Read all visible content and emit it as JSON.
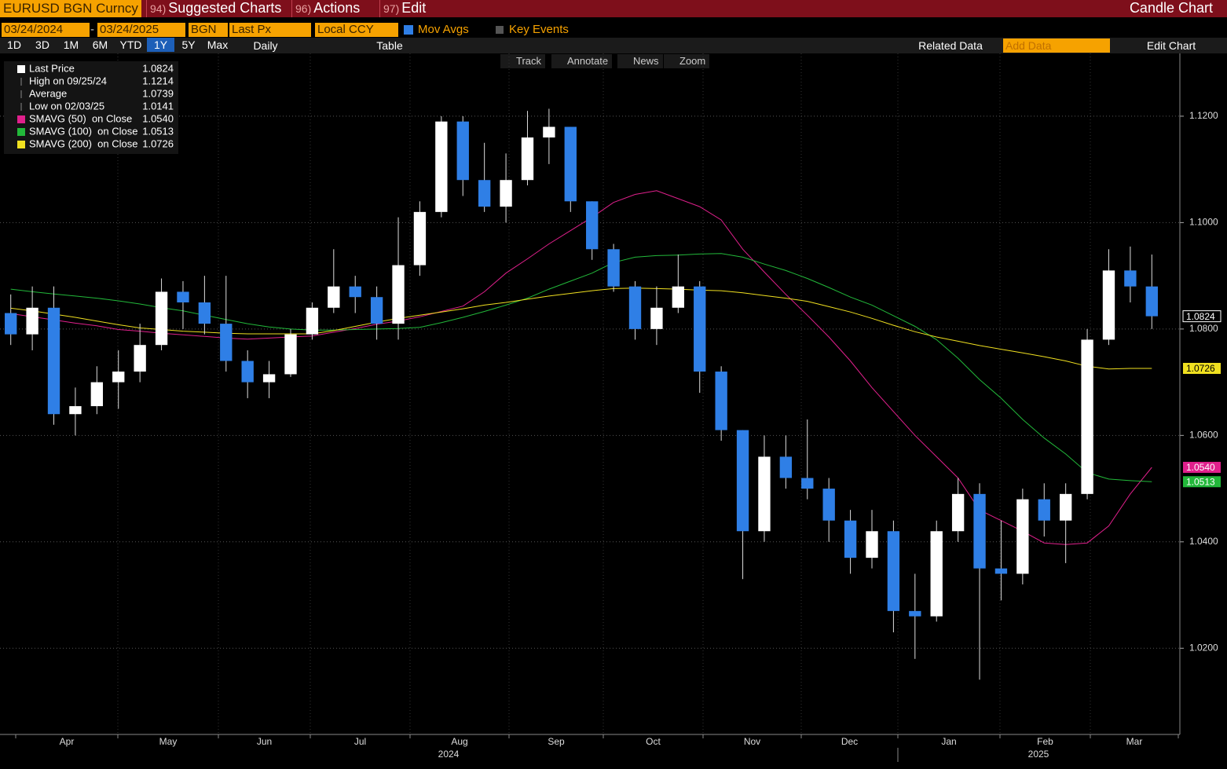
{
  "toolbar": {
    "security": "EURUSD BGN Curncy",
    "menus": [
      {
        "num": "94)",
        "label": "Suggested Charts"
      },
      {
        "num": "96)",
        "label": "Actions"
      },
      {
        "num": "97)",
        "label": "Edit"
      }
    ],
    "chart_kind": "Candle Chart",
    "start_date": "03/24/2024",
    "end_date": "03/24/2025",
    "source": "BGN",
    "field": "Last Px",
    "currency": "Local CCY",
    "mov_avgs": "Mov Avgs",
    "key_events": "Key Events",
    "periods": [
      "1D",
      "3D",
      "1M",
      "6M",
      "YTD",
      "1Y",
      "5Y",
      "Max"
    ],
    "frequency": "Daily",
    "table": "Table",
    "related": "Related Data",
    "add_data": "Add Data",
    "edit_chart": "Edit Chart",
    "tools": [
      "Track",
      "Annotate",
      "News",
      "Zoom"
    ]
  },
  "chart_data": {
    "type": "candlestick",
    "up_color": "#ffffff",
    "down_color": "#2f7fe6",
    "open": [
      1.083,
      1.079,
      1.084,
      1.064,
      1.0655,
      1.07,
      1.072,
      1.077,
      1.087,
      1.085,
      1.081,
      1.074,
      1.07,
      1.0715,
      1.079,
      1.084,
      1.088,
      1.086,
      1.081,
      1.092,
      1.102,
      1.119,
      1.108,
      1.103,
      1.108,
      1.116,
      1.118,
      1.104,
      1.095,
      1.088,
      1.08,
      1.084,
      1.088,
      1.072,
      1.061,
      1.042,
      1.056,
      1.052,
      1.05,
      1.044,
      1.037,
      1.042,
      1.027,
      1.026,
      1.042,
      1.049,
      1.035,
      1.034,
      1.048,
      1.044,
      1.049,
      1.078,
      1.091,
      1.088
    ],
    "high": [
      1.0865,
      1.088,
      1.088,
      1.069,
      1.073,
      1.076,
      1.081,
      1.0895,
      1.089,
      1.09,
      1.09,
      1.076,
      1.074,
      1.08,
      1.085,
      1.095,
      1.09,
      1.088,
      1.101,
      1.104,
      1.12,
      1.12,
      1.115,
      1.113,
      1.121,
      1.1214,
      1.118,
      1.104,
      1.096,
      1.089,
      1.088,
      1.094,
      1.089,
      1.073,
      1.061,
      1.06,
      1.06,
      1.063,
      1.052,
      1.046,
      1.046,
      1.044,
      1.034,
      1.044,
      1.052,
      1.051,
      1.044,
      1.05,
      1.051,
      1.051,
      1.08,
      1.095,
      1.0955,
      1.094
    ],
    "low": [
      1.077,
      1.076,
      1.062,
      1.06,
      1.064,
      1.065,
      1.07,
      1.076,
      1.08,
      1.079,
      1.072,
      1.067,
      1.067,
      1.071,
      1.078,
      1.083,
      1.083,
      1.078,
      1.078,
      1.09,
      1.101,
      1.105,
      1.102,
      1.1,
      1.107,
      1.111,
      1.102,
      1.093,
      1.087,
      1.078,
      1.077,
      1.083,
      1.068,
      1.059,
      1.033,
      1.04,
      1.05,
      1.048,
      1.04,
      1.034,
      1.035,
      1.023,
      1.018,
      1.025,
      1.04,
      1.0141,
      1.029,
      1.032,
      1.041,
      1.036,
      1.048,
      1.077,
      1.085,
      1.08
    ],
    "close": [
      1.079,
      1.084,
      1.064,
      1.0655,
      1.07,
      1.072,
      1.077,
      1.087,
      1.085,
      1.081,
      1.074,
      1.07,
      1.0715,
      1.079,
      1.084,
      1.088,
      1.086,
      1.081,
      1.092,
      1.102,
      1.119,
      1.108,
      1.103,
      1.108,
      1.116,
      1.118,
      1.104,
      1.095,
      1.088,
      1.08,
      1.084,
      1.088,
      1.072,
      1.061,
      1.042,
      1.056,
      1.052,
      1.05,
      1.044,
      1.037,
      1.042,
      1.027,
      1.026,
      1.042,
      1.049,
      1.035,
      1.034,
      1.048,
      1.044,
      1.049,
      1.078,
      1.091,
      1.088,
      1.0824
    ],
    "series": [
      {
        "name": "SMAVG (50)  on Close",
        "color": "#e0208c",
        "last": {
          "value": 1.054,
          "label": "1.0540"
        },
        "values": [
          1.0829,
          1.0823,
          1.0817,
          1.0811,
          1.0806,
          1.0799,
          1.0796,
          1.0792,
          1.0789,
          1.0786,
          1.0783,
          1.0781,
          1.0783,
          1.0785,
          1.0787,
          1.0794,
          1.0801,
          1.0809,
          1.0815,
          1.0823,
          1.0833,
          1.0843,
          1.087,
          1.0905,
          1.0932,
          1.096,
          1.0985,
          1.101,
          1.1038,
          1.1053,
          1.106,
          1.1045,
          1.103,
          1.1005,
          1.095,
          1.0907,
          1.0865,
          1.0826,
          1.0785,
          1.074,
          1.069,
          1.0645,
          1.06,
          1.056,
          1.052,
          1.046,
          1.044,
          1.042,
          1.0398,
          1.0395,
          1.0398,
          1.043,
          1.049,
          1.054
        ]
      },
      {
        "name": "SMAVG (100)  on Close",
        "color": "#22b83a",
        "last": {
          "value": 1.0513,
          "label": "1.0513"
        },
        "values": [
          1.0875,
          1.087,
          1.0866,
          1.0862,
          1.0858,
          1.0853,
          1.0847,
          1.084,
          1.0834,
          1.0826,
          1.0818,
          1.081,
          1.0804,
          1.08,
          1.0798,
          1.0798,
          1.0799,
          1.08,
          1.0801,
          1.0803,
          1.0812,
          1.0822,
          1.0833,
          1.0845,
          1.0858,
          1.0875,
          1.089,
          1.0905,
          1.0925,
          1.0935,
          1.0938,
          1.0939,
          1.0941,
          1.0942,
          1.0935,
          1.0922,
          1.091,
          1.0895,
          1.0878,
          1.086,
          1.0845,
          1.0825,
          1.0805,
          1.078,
          1.0745,
          1.0705,
          1.067,
          1.063,
          1.0595,
          1.0565,
          1.053,
          1.0518,
          1.0515,
          1.0513
        ]
      },
      {
        "name": "SMAVG (200)  on Close",
        "color": "#f0e020",
        "last": {
          "value": 1.0726,
          "label": "1.0726"
        },
        "values": [
          1.0839,
          1.0834,
          1.0828,
          1.0822,
          1.0815,
          1.0808,
          1.0802,
          1.0799,
          1.0796,
          1.0794,
          1.0792,
          1.0791,
          1.0791,
          1.0791,
          1.0791,
          1.0797,
          1.0805,
          1.0813,
          1.082,
          1.0826,
          1.0832,
          1.0838,
          1.0845,
          1.085,
          1.0856,
          1.0862,
          1.0867,
          1.0872,
          1.0876,
          1.0877,
          1.0876,
          1.0875,
          1.0873,
          1.0872,
          1.0868,
          1.0863,
          1.0858,
          1.0852,
          1.0842,
          1.0832,
          1.082,
          1.0807,
          1.0795,
          1.0785,
          1.0777,
          1.0769,
          1.0762,
          1.0755,
          1.0748,
          1.074,
          1.073,
          1.0725,
          1.0726,
          1.0726
        ]
      }
    ],
    "legend": [
      {
        "label": "Last Price",
        "value": {
          "value": 1.0824,
          "label": "1.0824"
        }
      },
      {
        "label": "High on 09/25/24",
        "value": {
          "value": 1.1214,
          "label": "1.1214"
        }
      },
      {
        "label": "Average",
        "value": {
          "value": 1.0739,
          "label": "1.0739"
        }
      },
      {
        "label": "Low on 02/03/25",
        "value": {
          "value": 1.0141,
          "label": "1.0141"
        }
      }
    ],
    "ylim": [
      1.0038,
      1.1318
    ],
    "yticks": [
      {
        "value": 1.02,
        "label": "1.0200"
      },
      {
        "value": 1.04,
        "label": "1.0400"
      },
      {
        "value": 1.06,
        "label": "1.0600"
      },
      {
        "value": 1.08,
        "label": "1.0800"
      },
      {
        "value": 1.1,
        "label": "1.1000"
      },
      {
        "value": 1.12,
        "label": "1.1200"
      }
    ],
    "months": [
      "Apr",
      "May",
      "Jun",
      "Jul",
      "Aug",
      "Sep",
      "Oct",
      "Nov",
      "Dec",
      "Jan",
      "Feb",
      "Mar"
    ],
    "years": [
      "2024",
      "2025"
    ],
    "grid": true
  }
}
